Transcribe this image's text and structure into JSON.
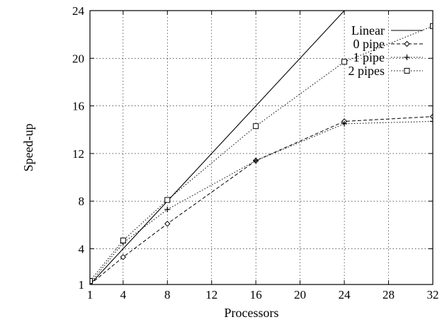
{
  "chart_data": {
    "type": "line",
    "xlabel": "Processors",
    "ylabel": "Speed-up",
    "xlim": [
      1,
      32
    ],
    "ylim": [
      1,
      24
    ],
    "xticks": [
      1,
      4,
      8,
      12,
      16,
      20,
      24,
      28,
      32
    ],
    "yticks": [
      1,
      4,
      8,
      12,
      16,
      20,
      24
    ],
    "grid": true,
    "legend_position": "top-right",
    "series": [
      {
        "name": "Linear",
        "marker": "none",
        "dash": "solid",
        "points": [
          [
            1,
            1
          ],
          [
            4,
            4
          ],
          [
            8,
            8
          ],
          [
            16,
            16
          ],
          [
            24,
            24
          ]
        ]
      },
      {
        "name": "0 pipe",
        "marker": "diamond",
        "dash": "dashed",
        "points": [
          [
            1,
            1
          ],
          [
            4,
            3.3
          ],
          [
            8,
            6.1
          ],
          [
            16,
            11.4
          ],
          [
            24,
            14.7
          ],
          [
            32,
            15.1
          ]
        ]
      },
      {
        "name": "1 pipe",
        "marker": "plus",
        "dash": "dotted",
        "points": [
          [
            1,
            1.1
          ],
          [
            4,
            4.5
          ],
          [
            8,
            7.3
          ],
          [
            16,
            11.4
          ],
          [
            24,
            14.5
          ],
          [
            32,
            14.7
          ]
        ]
      },
      {
        "name": "2 pipes",
        "marker": "square",
        "dash": "dotted",
        "points": [
          [
            1,
            1.3
          ],
          [
            4,
            4.7
          ],
          [
            8,
            8.1
          ],
          [
            16,
            14.3
          ],
          [
            24,
            19.7
          ],
          [
            32,
            22.7
          ]
        ]
      }
    ]
  }
}
